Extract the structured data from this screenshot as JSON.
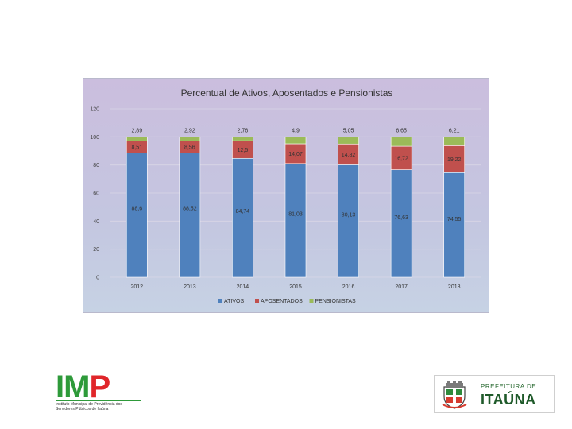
{
  "chart_data": {
    "type": "bar",
    "stacked": true,
    "title": "Percentual de Ativos, Aposentados e Pensionistas",
    "categories": [
      "2012",
      "2013",
      "2014",
      "2015",
      "2016",
      "2017",
      "2018"
    ],
    "series": [
      {
        "name": "ATIVOS",
        "color": "#4f81bd",
        "values": [
          88.6,
          88.52,
          84.74,
          81.03,
          80.13,
          76.63,
          74.55
        ],
        "labels": [
          "88,6",
          "88,52",
          "84,74",
          "81,03",
          "80,13",
          "76,63",
          "74,55"
        ]
      },
      {
        "name": "APOSENTADOS",
        "color": "#c0504d",
        "values": [
          8.51,
          8.56,
          12.5,
          14.07,
          14.82,
          16.72,
          19.22
        ],
        "labels": [
          "8,51",
          "8,56",
          "12,5",
          "14,07",
          "14,82",
          "16,72",
          "19,22"
        ]
      },
      {
        "name": "PENSIONISTAS",
        "color": "#9bbb59",
        "values": [
          2.89,
          2.92,
          2.76,
          4.9,
          5.05,
          6.65,
          6.21
        ],
        "labels": [
          "2,89",
          "2,92",
          "2,76",
          "4,9",
          "5,05",
          "6,65",
          "6,21"
        ]
      }
    ],
    "ylim": [
      0,
      120
    ],
    "yticks": [
      "0",
      "20",
      "40",
      "60",
      "80",
      "100",
      "120"
    ],
    "grid": true,
    "legend_position": "bottom"
  },
  "logos": {
    "imp": {
      "letters": [
        "I",
        "M",
        "P"
      ],
      "tagline": "Instituto Municipal de Previdência dos Servidores Públicos de Itaúna"
    },
    "prefeitura": {
      "top": "PREFEITURA DE",
      "name": "ITAÚNA"
    }
  }
}
